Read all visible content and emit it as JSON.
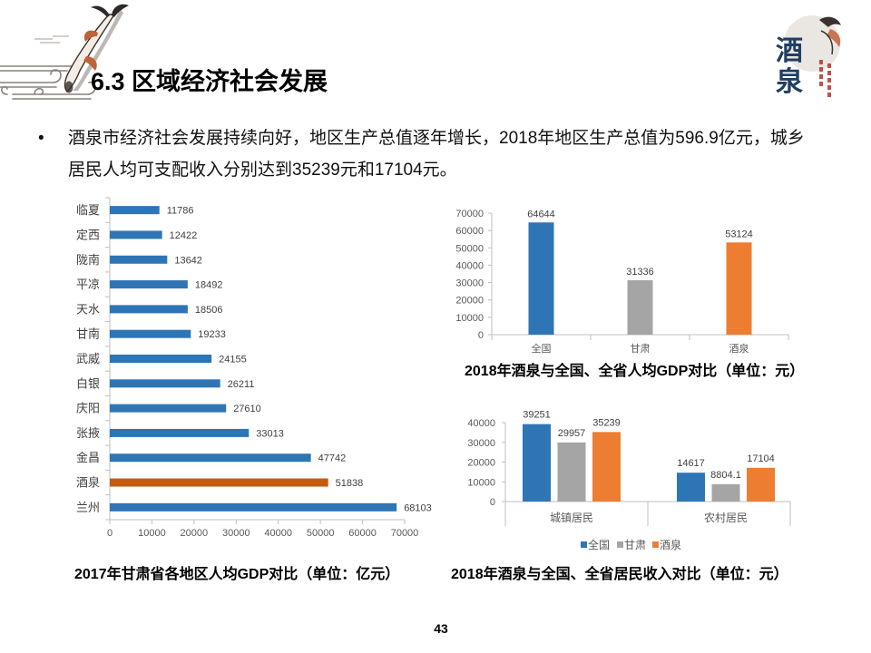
{
  "slide": {
    "title": "6.3 区域经济社会发展",
    "bullet_symbol": "•",
    "bullet_lines": [
      "酒泉市经济社会发展持续向好，地区生产总值逐年增长，2018年地区生产总值为596.9亿元，城乡",
      "居民人均可支配收入分别达到35239元和17104元。"
    ],
    "page_number": "43"
  },
  "logos": {
    "left": {
      "icon": "koi-fish-cloud-ornament"
    },
    "right": {
      "icon": "jiuquan-calligraphy-logo",
      "lettering": [
        "酒",
        "泉"
      ]
    }
  },
  "chart_data": [
    {
      "type": "bar",
      "orientation": "horizontal",
      "caption": "2017年甘肃省各地区人均GDP对比（单位：亿元）",
      "categories": [
        "临夏",
        "定西",
        "陇南",
        "平凉",
        "天水",
        "甘南",
        "武威",
        "白银",
        "庆阳",
        "张掖",
        "金昌",
        "酒泉",
        "兰州"
      ],
      "values": [
        11786,
        12422,
        13642,
        18492,
        18506,
        19233,
        24155,
        26211,
        27610,
        33013,
        47742,
        51838,
        68103
      ],
      "bar_colors": [
        "#2E75B6",
        "#2E75B6",
        "#2E75B6",
        "#2E75B6",
        "#2E75B6",
        "#2E75B6",
        "#2E75B6",
        "#2E75B6",
        "#2E75B6",
        "#2E75B6",
        "#2E75B6",
        "#C55A11",
        "#2E75B6"
      ],
      "xlim": [
        0,
        70000
      ],
      "xticks": [
        0,
        10000,
        20000,
        30000,
        40000,
        50000,
        60000,
        70000
      ],
      "grid": false,
      "legend": "none"
    },
    {
      "type": "bar",
      "orientation": "vertical",
      "caption": "2018年酒泉与全国、全省人均GDP对比（单位：元）",
      "categories": [
        "全国",
        "甘肃",
        "酒泉"
      ],
      "values": [
        64644,
        31336,
        53124
      ],
      "bar_colors": [
        "#2E75B6",
        "#A5A5A5",
        "#ED7D31"
      ],
      "ylim": [
        0,
        70000
      ],
      "yticks": [
        0,
        10000,
        20000,
        30000,
        40000,
        50000,
        60000,
        70000
      ],
      "grid": false,
      "legend": "none"
    },
    {
      "type": "bar",
      "orientation": "vertical",
      "caption": "2018年酒泉与全国、全省居民收入对比（单位：元）",
      "categories": [
        "城镇居民",
        "农村居民"
      ],
      "series": [
        {
          "name": "全国",
          "values": [
            39251,
            14617
          ],
          "color": "#2E75B6"
        },
        {
          "name": "甘肃",
          "values": [
            29957,
            8804.1
          ],
          "color": "#A5A5A5"
        },
        {
          "name": "酒泉",
          "values": [
            35239,
            17104
          ],
          "color": "#ED7D31"
        }
      ],
      "ylim": [
        0,
        40000
      ],
      "yticks": [
        0,
        10000,
        20000,
        30000,
        40000
      ],
      "grid": false,
      "legend": "bottom"
    }
  ]
}
